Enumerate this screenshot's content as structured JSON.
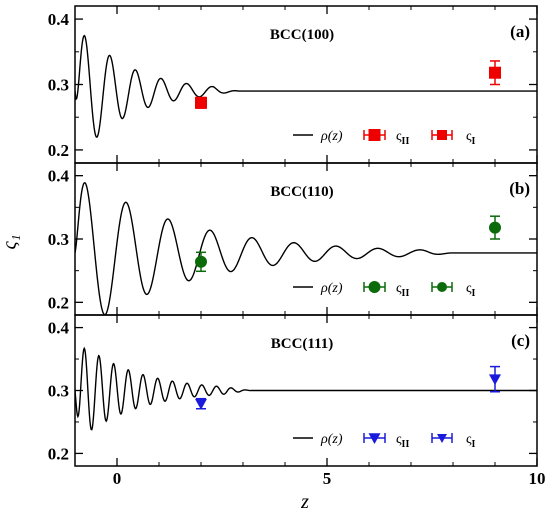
{
  "chart_data": {
    "type": "line",
    "shared_x": {
      "label": "z",
      "lim": [
        -1,
        10
      ],
      "ticks": [
        0,
        5,
        10
      ],
      "tick_labels": [
        "0",
        "5",
        "10"
      ]
    },
    "ylabel": "ς₁",
    "panels": [
      {
        "title": "BCC(100)",
        "letter": "(a)",
        "ylim": [
          0.18,
          0.42
        ],
        "yticks": [
          0.2,
          0.3,
          0.4
        ],
        "ytick_labels": [
          "0.2",
          "0.3",
          "0.4"
        ],
        "color": "#ee0000",
        "marker": "square",
        "density": {
          "bulk": 0.29,
          "amplitude": 0.11,
          "period": 0.61,
          "decay": 0.85,
          "x_end": 2.9
        },
        "points": [
          {
            "series": "ς_II",
            "x": 2.0,
            "y": 0.272,
            "err": 0.008
          },
          {
            "series": "ς_I",
            "x": 9.0,
            "y": 0.318,
            "err": 0.018
          }
        ],
        "legend": [
          "ρ(z)",
          "ς_II",
          "ς_I"
        ]
      },
      {
        "title": "BCC(110)",
        "letter": "(b)",
        "ylim": [
          0.18,
          0.42
        ],
        "yticks": [
          0.2,
          0.3,
          0.4
        ],
        "ytick_labels": [
          "0.2",
          "0.3",
          "0.4"
        ],
        "color": "#0b6b0b",
        "marker": "circle",
        "density": {
          "bulk": 0.278,
          "amplitude": 0.13,
          "period": 1.0,
          "decay": 0.4,
          "x_end": 8.0
        },
        "points": [
          {
            "series": "ς_II",
            "x": 2.0,
            "y": 0.264,
            "err": 0.015
          },
          {
            "series": "ς_I",
            "x": 9.0,
            "y": 0.318,
            "err": 0.018
          }
        ],
        "legend": [
          "ρ(z)",
          "ς_II",
          "ς_I"
        ]
      },
      {
        "title": "BCC(111)",
        "letter": "(c)",
        "ylim": [
          0.18,
          0.42
        ],
        "yticks": [
          0.2,
          0.3,
          0.4
        ],
        "ytick_labels": [
          "0.2",
          "0.3",
          "0.4"
        ],
        "color": "#1a1adc",
        "marker": "triangle-down",
        "density": {
          "bulk": 0.3,
          "amplitude": 0.085,
          "period": 0.35,
          "decay": 0.75,
          "x_end": 3.2
        },
        "points": [
          {
            "series": "ς_II",
            "x": 2.0,
            "y": 0.279,
            "err": 0.008
          },
          {
            "series": "ς_I",
            "x": 9.0,
            "y": 0.318,
            "err": 0.02
          }
        ],
        "legend": [
          "ρ(z)",
          "ς_II",
          "ς_I"
        ]
      }
    ]
  }
}
